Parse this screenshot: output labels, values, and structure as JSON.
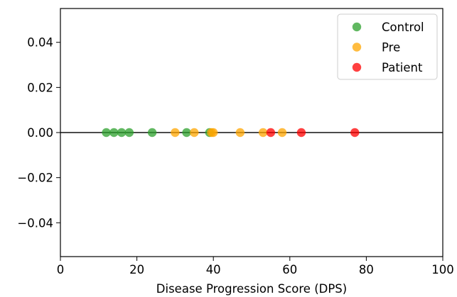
{
  "chart_data": {
    "type": "scatter",
    "title": "",
    "xlabel": "Disease Progression Score (DPS)",
    "ylabel": "",
    "xlim": [
      0,
      100
    ],
    "ylim": [
      -0.055,
      0.055
    ],
    "xticks": [
      0,
      20,
      40,
      60,
      80,
      100
    ],
    "xtick_labels": [
      "0",
      "20",
      "40",
      "60",
      "80",
      "100"
    ],
    "yticks": [
      -0.04,
      -0.02,
      0.0,
      0.02,
      0.04
    ],
    "ytick_labels": [
      "−0.04",
      "−0.02",
      "0.00",
      "0.02",
      "0.04"
    ],
    "grid": false,
    "legend_position": "top-right",
    "zero_line": true,
    "series": [
      {
        "name": "Control",
        "color": "#2ca02c",
        "x": [
          12,
          14,
          16,
          18,
          24,
          33,
          39
        ],
        "y": [
          0,
          0,
          0,
          0,
          0,
          0,
          0
        ]
      },
      {
        "name": "Pre",
        "color": "#ffa500",
        "x": [
          30,
          35,
          39.5,
          40,
          47,
          53,
          58
        ],
        "y": [
          0,
          0,
          0,
          0,
          0,
          0,
          0
        ]
      },
      {
        "name": "Patient",
        "color": "#ff0000",
        "x": [
          55,
          63,
          77
        ],
        "y": [
          0,
          0,
          0
        ]
      }
    ]
  }
}
